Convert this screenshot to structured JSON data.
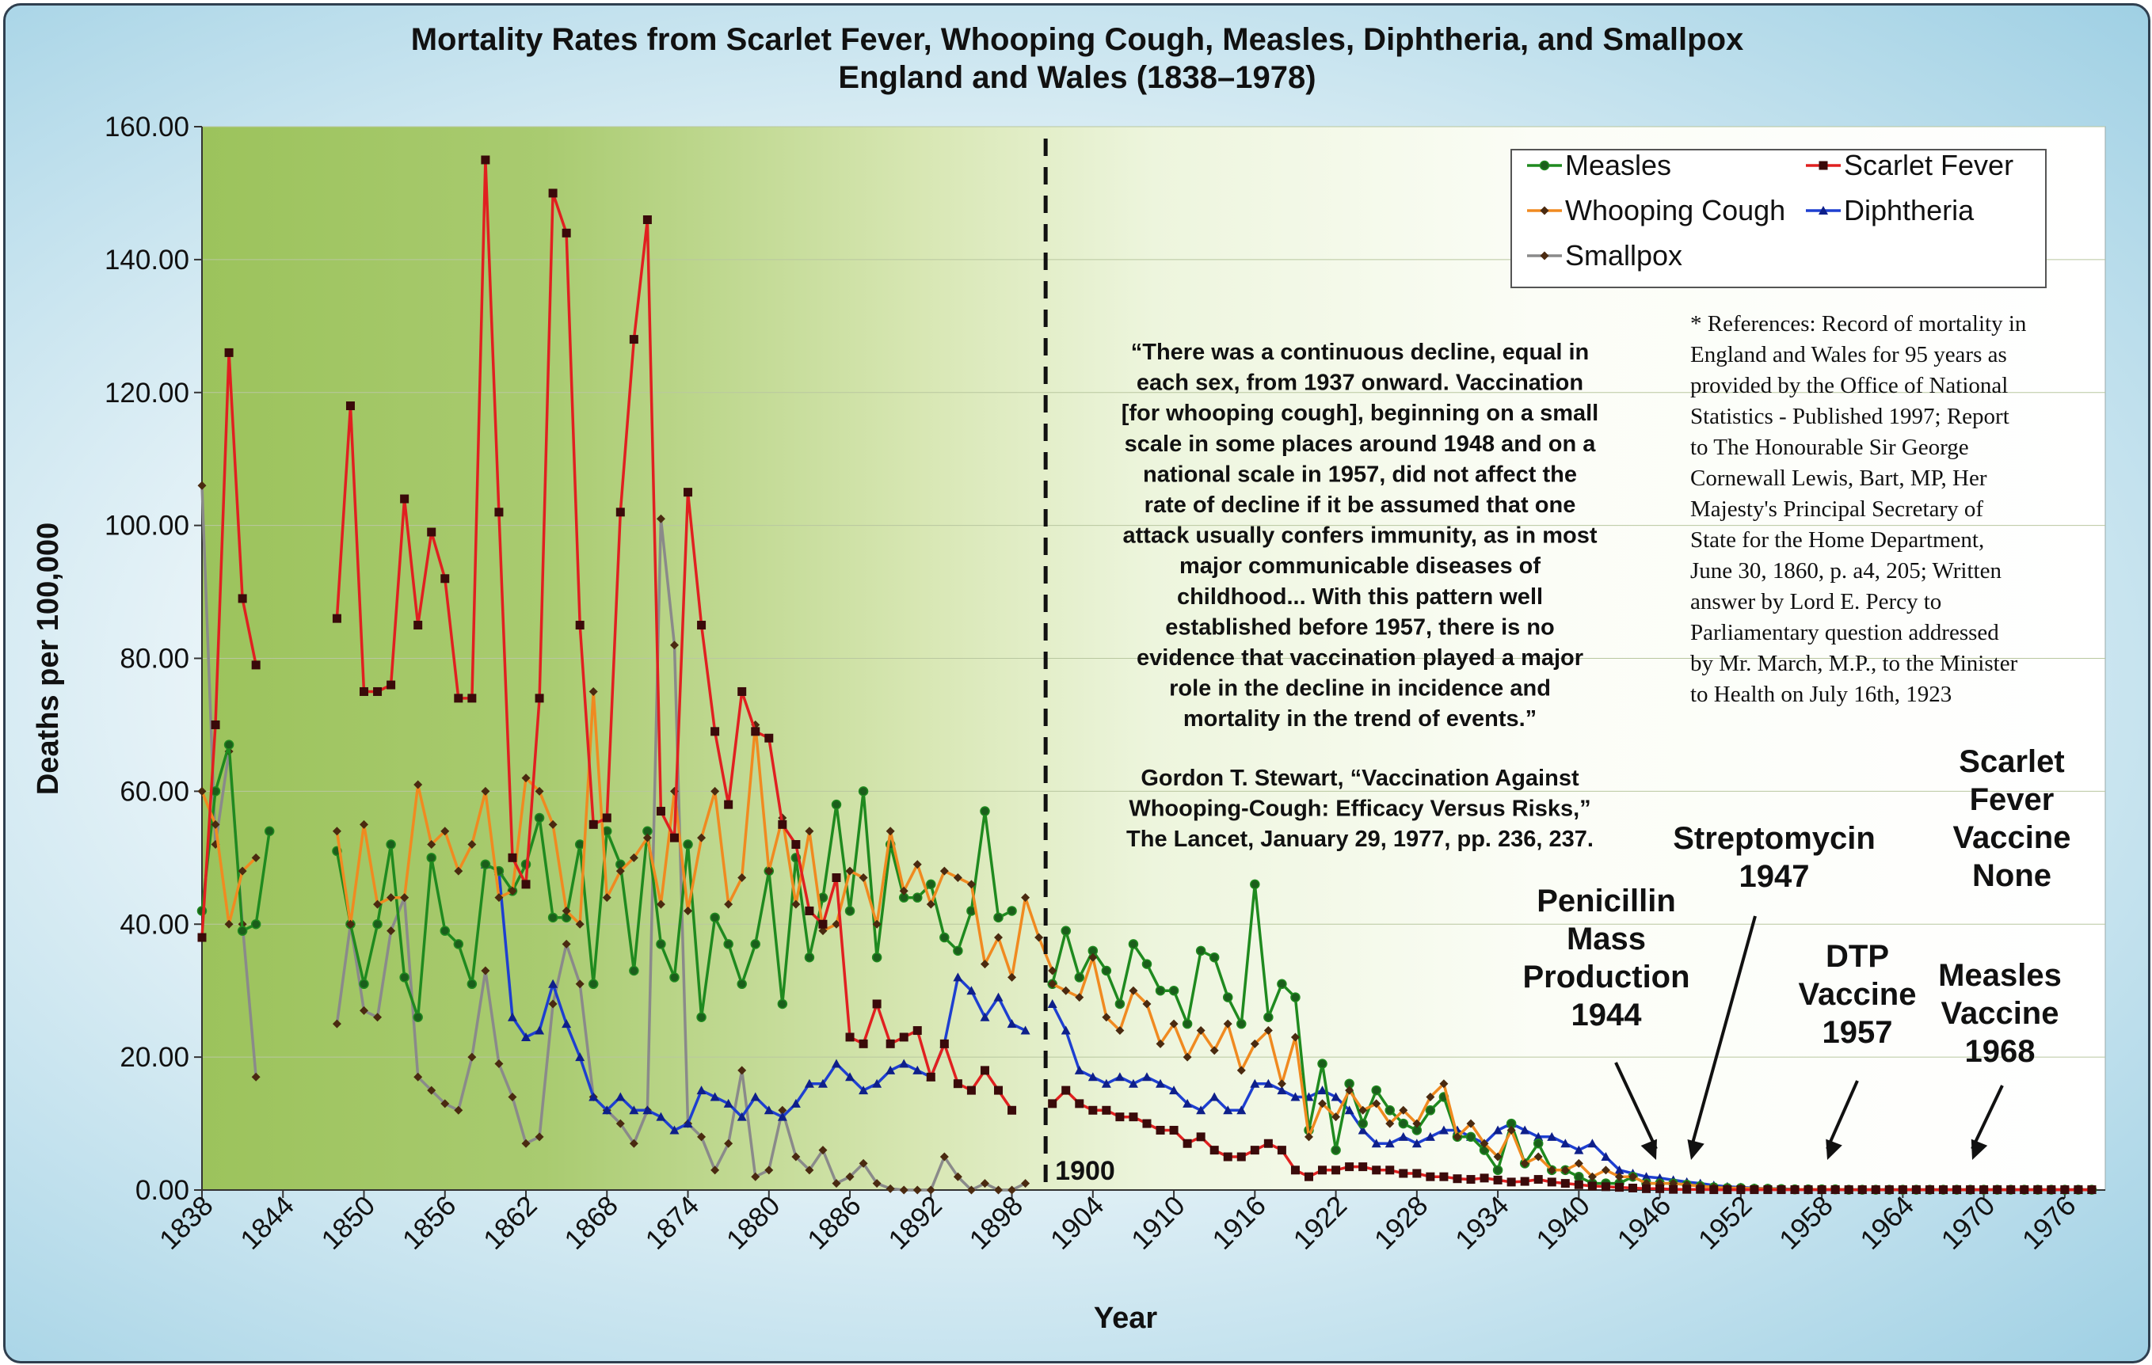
{
  "chart_data": {
    "type": "line",
    "title_line1": "Mortality Rates from Scarlet Fever, Whooping Cough, Measles, Diphtheria, and Smallpox",
    "title_line2": "England and Wales (1838–1978)",
    "xlabel": "Year",
    "ylabel": "Deaths per 100,000",
    "xlim": [
      1838,
      1979
    ],
    "ylim": [
      0,
      160
    ],
    "y_ticks": [
      "0.00",
      "20.00",
      "40.00",
      "60.00",
      "80.00",
      "100.00",
      "120.00",
      "140.00",
      "160.00"
    ],
    "x_ticks": [
      "1838",
      "1844",
      "1850",
      "1856",
      "1862",
      "1868",
      "1874",
      "1880",
      "1886",
      "1892",
      "1898",
      "1904",
      "1910",
      "1916",
      "1922",
      "1928",
      "1934",
      "1940",
      "1946",
      "1952",
      "1958",
      "1964",
      "1970",
      "1976"
    ],
    "x_tick_years": [
      1838,
      1844,
      1850,
      1856,
      1862,
      1868,
      1874,
      1880,
      1886,
      1892,
      1898,
      1904,
      1910,
      1916,
      1922,
      1928,
      1934,
      1940,
      1946,
      1952,
      1958,
      1964,
      1970,
      1976
    ],
    "divider_year": 1900.5,
    "divider_label": "1900",
    "legend": [
      "Measles",
      "Scarlet Fever",
      "Whooping Cough",
      "Diphtheria",
      "Smallpox"
    ],
    "series": [
      {
        "name": "Measles",
        "color": "#1f8a1f",
        "marker": "circle",
        "segments": [
          {
            "x0": 1838,
            "values": [
              42,
              60,
              67,
              39,
              40,
              54
            ]
          },
          {
            "x0": 1848,
            "values": [
              51,
              40,
              31,
              40,
              52,
              32,
              26,
              50,
              39,
              37,
              31,
              49,
              48,
              45,
              49,
              56,
              41,
              41,
              52,
              31,
              54,
              49,
              33,
              54,
              37,
              32,
              52,
              26,
              41,
              37,
              31,
              37,
              48,
              28,
              50,
              35,
              44,
              58,
              42,
              60,
              35,
              52,
              44,
              44,
              46,
              38,
              36,
              42,
              57,
              41,
              42
            ]
          },
          {
            "x0": 1901,
            "values": [
              31,
              39,
              32,
              36,
              33,
              28,
              37,
              34,
              30,
              30,
              25,
              36,
              35,
              29,
              25,
              46,
              26,
              31,
              29,
              9,
              19,
              6,
              16,
              10,
              15,
              12,
              10,
              9,
              12,
              14,
              8,
              8,
              6,
              3,
              10,
              4,
              7,
              3,
              3,
              2,
              1,
              1,
              1,
              2,
              1,
              1,
              1,
              0.8,
              0.6,
              0.4,
              0.3,
              0.3,
              0.2,
              0.2,
              0.15,
              0.1,
              0.1,
              0.1,
              0.1,
              0.05,
              0.05,
              0.05,
              0.05,
              0.05,
              0.05,
              0.05,
              0.05,
              0.05,
              0.05,
              0.05,
              0.05,
              0.05,
              0.05,
              0.05,
              0.05,
              0.05,
              0.05,
              0.05
            ]
          }
        ]
      },
      {
        "name": "Scarlet Fever",
        "color": "#e02020",
        "marker": "square",
        "segments": [
          {
            "x0": 1838,
            "values": [
              38,
              70,
              126,
              89,
              79
            ]
          },
          {
            "x0": 1848,
            "values": [
              86,
              118,
              75,
              75,
              76,
              104,
              85,
              99,
              92,
              74,
              74,
              155,
              102,
              50,
              46,
              74,
              150,
              144,
              85,
              55,
              56,
              102,
              128,
              146,
              57,
              53,
              105,
              85,
              69,
              58,
              75,
              69,
              68,
              55,
              52,
              42,
              40,
              47,
              23,
              22,
              28,
              22,
              23,
              24,
              17,
              22,
              16,
              15,
              18,
              15,
              12
            ]
          },
          {
            "x0": 1901,
            "values": [
              13,
              15,
              13,
              12,
              12,
              11,
              11,
              10,
              9,
              9,
              7,
              8,
              6,
              5,
              5,
              6,
              7,
              6,
              3,
              2,
              3,
              3,
              3.5,
              3.5,
              3,
              3,
              2.5,
              2.5,
              2,
              2,
              1.7,
              1.6,
              1.8,
              1.5,
              1.2,
              1.3,
              1.6,
              1.2,
              1.0,
              0.8,
              0.6,
              0.5,
              0.4,
              0.3,
              0.2,
              0.2,
              0.1,
              0.1,
              0.1,
              0.05,
              0.05,
              0.05,
              0.05,
              0.05,
              0.05,
              0.05,
              0.05,
              0.05,
              0.05,
              0.05,
              0.05,
              0.05,
              0.05,
              0.05,
              0.05,
              0.05,
              0.05,
              0.05,
              0.05,
              0.05,
              0.05,
              0.05,
              0.05,
              0.05,
              0.05,
              0.05,
              0.05,
              0.05
            ]
          }
        ]
      },
      {
        "name": "Whooping Cough",
        "color": "#f08a20",
        "marker": "diamond",
        "segments": [
          {
            "x0": 1838,
            "values": [
              60,
              55,
              40,
              48,
              50
            ]
          },
          {
            "x0": 1848,
            "values": [
              54,
              40,
              55,
              43,
              44,
              44,
              61,
              52,
              54,
              48,
              52,
              60,
              44,
              45,
              62,
              60,
              55,
              42,
              40,
              75,
              44,
              48,
              50,
              53,
              43,
              60,
              42,
              53,
              60,
              43,
              47,
              70,
              48,
              56,
              43,
              54,
              39,
              40,
              48,
              47,
              40,
              54,
              45,
              49,
              43,
              48,
              47,
              46,
              34,
              38,
              32,
              44,
              38,
              33
            ]
          },
          {
            "x0": 1901,
            "values": [
              31,
              30,
              29,
              35,
              26,
              24,
              30,
              28,
              22,
              25,
              20,
              24,
              21,
              25,
              18,
              22,
              24,
              16,
              23,
              8,
              13,
              11,
              15,
              12,
              13,
              10,
              12,
              10,
              14,
              16,
              8,
              10,
              7,
              5,
              9,
              4,
              5,
              3,
              3,
              4,
              2,
              3,
              2,
              2,
              1,
              1,
              1,
              0.8,
              0.6,
              0.4,
              0.3,
              0.3,
              0.2,
              0.2,
              0.1,
              0.1,
              0.1,
              0.1,
              0.1,
              0.05,
              0.05,
              0.05,
              0.05,
              0.05,
              0.05,
              0.05,
              0.05,
              0.05,
              0.05,
              0.05,
              0.05,
              0.05,
              0.05,
              0.05,
              0.05,
              0.05,
              0.05,
              0.05
            ]
          }
        ]
      },
      {
        "name": "Diphtheria",
        "color": "#1e3fd0",
        "marker": "triangle",
        "segments": [
          {
            "x0": 1859,
            "values": [
              49,
              48,
              26,
              23,
              24,
              31,
              25,
              20,
              14,
              12,
              14,
              12,
              12,
              11,
              9,
              10,
              15,
              14,
              13,
              11,
              14,
              12,
              11,
              13,
              16,
              16,
              19,
              17,
              15,
              16,
              18,
              19,
              18,
              17,
              22,
              32,
              30,
              26,
              29,
              25,
              24
            ]
          },
          {
            "x0": 1901,
            "values": [
              28,
              24,
              18,
              17,
              16,
              17,
              16,
              17,
              16,
              15,
              13,
              12,
              14,
              12,
              12,
              16,
              16,
              15,
              14,
              14,
              15,
              14,
              12,
              9,
              7,
              7,
              8,
              7,
              8,
              9,
              9,
              8,
              7,
              9,
              10,
              9,
              8,
              8,
              7,
              6,
              7,
              5,
              3,
              2.5,
              2,
              1.8,
              1.5,
              1.2,
              1.0,
              0.7,
              0.5,
              0.4,
              0.3,
              0.2,
              0.2,
              0.1,
              0.1,
              0.05,
              0.05,
              0.05,
              0.05,
              0.05,
              0.05,
              0.05,
              0.05,
              0.05,
              0.05,
              0.05,
              0.05,
              0.05,
              0.05,
              0.05,
              0.05,
              0.05,
              0.05,
              0.05,
              0.05,
              0.05
            ]
          }
        ]
      },
      {
        "name": "Smallpox",
        "color": "#8a8a8a",
        "marker": "diamond",
        "segments": [
          {
            "x0": 1838,
            "values": [
              106,
              52,
              66,
              40,
              17
            ]
          },
          {
            "x0": 1848,
            "values": [
              25,
              40,
              27,
              26,
              39,
              44,
              17,
              15,
              13,
              12,
              20,
              33,
              19,
              14,
              7,
              8,
              28,
              37,
              31,
              14,
              12,
              10,
              7,
              12,
              101,
              82,
              10,
              8,
              3,
              7,
              18,
              2,
              3,
              12,
              5,
              3,
              6,
              1,
              2,
              4,
              1,
              0.2,
              0,
              0,
              0,
              5,
              2,
              0,
              1,
              0,
              0,
              1
            ]
          }
        ]
      }
    ],
    "quote_lines": [
      "“There was a continuous decline, equal in",
      "each sex, from 1937 onward. Vaccination",
      "[for whooping cough], beginning on a small",
      "scale in some places around 1948 and on a",
      "national scale in 1957, did not affect the",
      "rate of decline if it be assumed that one",
      "attack usually confers immunity, as in most",
      "major communicable diseases of",
      "childhood... With this pattern well",
      "established before 1957, there is no",
      "evidence that vaccination played a major",
      "role in the decline in incidence and",
      "mortality in the trend of events.”"
    ],
    "citation_lines": [
      "Gordon T. Stewart, “Vaccination Against",
      "Whooping-Cough: Efficacy Versus Risks,”",
      "The Lancet, January 29, 1977, pp. 236, 237."
    ],
    "reference_lines": [
      "* References: Record of mortality in",
      "England and Wales for 95 years as",
      "provided by the Office of National",
      "Statistics - Published 1997; Report",
      "to The Honourable Sir George",
      "Cornewall Lewis, Bart, MP, Her",
      "Majesty's Principal Secretary of",
      "State for the Home Department,",
      "June 30, 1860, p. a4, 205; Written",
      "answer by Lord E. Percy to",
      "Parliamentary question addressed",
      "by Mr. March, M.P., to the Minister",
      "to Health on July 16th, 1923"
    ],
    "annotations": [
      {
        "lines": [
          "Penicillin",
          "Mass",
          "Production",
          "1944"
        ],
        "year": 1944
      },
      {
        "lines": [
          "Streptomycin",
          "1947"
        ],
        "year": 1947
      },
      {
        "lines": [
          "DTP",
          "Vaccine",
          "1957"
        ],
        "year": 1957
      },
      {
        "lines": [
          "Scarlet",
          "Fever",
          "Vaccine",
          "None"
        ],
        "year": null
      },
      {
        "lines": [
          "Measles",
          "Vaccine",
          "1968"
        ],
        "year": 1968
      }
    ]
  }
}
